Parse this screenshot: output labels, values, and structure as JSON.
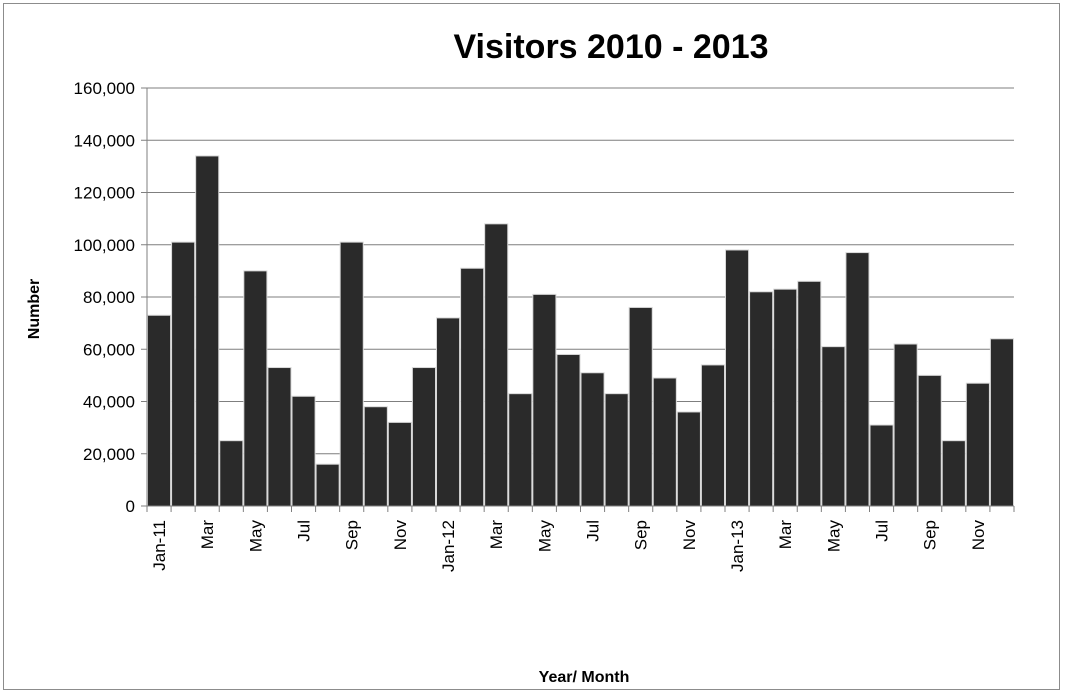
{
  "chart_data": {
    "type": "bar",
    "title": "Visitors 2010 - 2013",
    "xlabel": "Year/ Month",
    "ylabel": "Number",
    "ylim": [
      0,
      160000
    ],
    "yticks": [
      0,
      20000,
      40000,
      60000,
      80000,
      100000,
      120000,
      140000,
      160000
    ],
    "ytick_labels": [
      "0",
      "20,000",
      "40,000",
      "60,000",
      "80,000",
      "100,000",
      "120,000",
      "140,000",
      "160,000"
    ],
    "grid": true,
    "legend": "none",
    "x_tick_labels": [
      "Jan-11",
      "",
      "Mar",
      "",
      "May",
      "",
      "Jul",
      "",
      "Sep",
      "",
      "Nov",
      "",
      "Jan-12",
      "",
      "Mar",
      "",
      "May",
      "",
      "Jul",
      "",
      "Sep",
      "",
      "Nov",
      "",
      "Jan-13",
      "",
      "Mar",
      "",
      "May",
      "",
      "Jul",
      "",
      "Sep",
      "",
      "Nov",
      ""
    ],
    "values": [
      73000,
      101000,
      134000,
      25000,
      90000,
      53000,
      42000,
      16000,
      101000,
      38000,
      32000,
      53000,
      72000,
      91000,
      108000,
      43000,
      81000,
      58000,
      51000,
      43000,
      76000,
      49000,
      36000,
      54000,
      98000,
      82000,
      83000,
      86000,
      61000,
      97000,
      31000,
      62000,
      50000,
      25000,
      47000,
      64000
    ],
    "bar_color": "#2a2a2a"
  }
}
